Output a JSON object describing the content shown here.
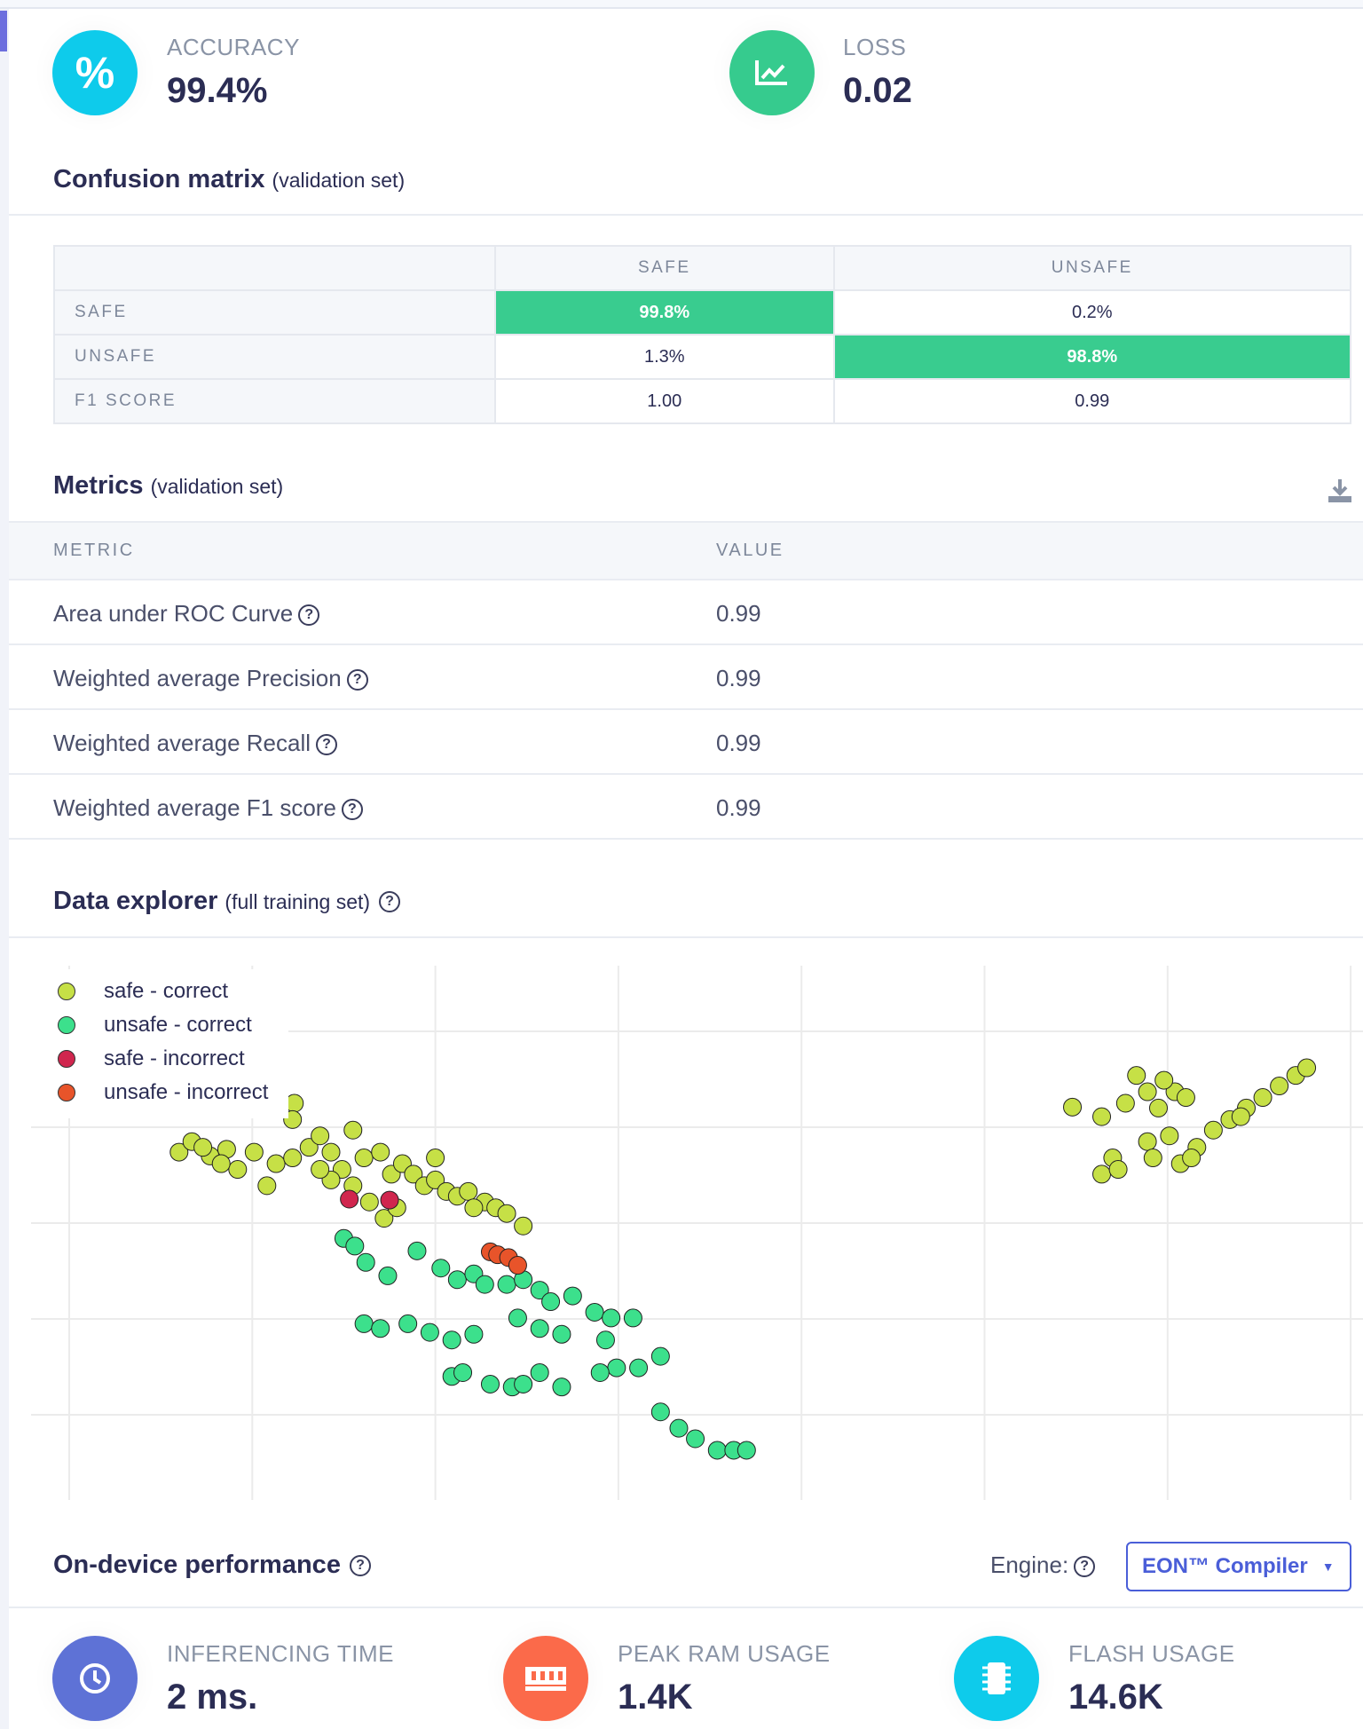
{
  "stats": {
    "accuracy": {
      "label": "ACCURACY",
      "value": "99.4%",
      "icon": "percent-icon",
      "color": "#0ecbeb"
    },
    "loss": {
      "label": "LOSS",
      "value": "0.02",
      "icon": "chart-line-icon",
      "color": "#36cb8e"
    }
  },
  "confusion": {
    "title": "Confusion matrix",
    "subtitle": "(validation set)",
    "columns": [
      "SAFE",
      "UNSAFE"
    ],
    "rows": [
      {
        "label": "SAFE",
        "values": [
          "99.8%",
          "0.2%"
        ]
      },
      {
        "label": "UNSAFE",
        "values": [
          "1.3%",
          "98.8%"
        ]
      },
      {
        "label": "F1 SCORE",
        "values": [
          "1.00",
          "0.99"
        ]
      }
    ]
  },
  "metrics": {
    "title": "Metrics",
    "subtitle": "(validation set)",
    "headers": [
      "METRIC",
      "VALUE"
    ],
    "rows": [
      {
        "name": "Area under ROC Curve",
        "value": "0.99"
      },
      {
        "name": "Weighted average Precision",
        "value": "0.99"
      },
      {
        "name": "Weighted average Recall",
        "value": "0.99"
      },
      {
        "name": "Weighted average F1 score",
        "value": "0.99"
      }
    ]
  },
  "explorer": {
    "title": "Data explorer",
    "subtitle": "(full training set)"
  },
  "chart_data": {
    "type": "scatter",
    "title": "",
    "xlabel": "",
    "ylabel": "",
    "xlim": [
      -0.1,
      7.05
    ],
    "ylim": [
      -0.9,
      4.6
    ],
    "grid": true,
    "legend": "top-left",
    "series": [
      {
        "name": "safe - correct",
        "color": "#c6e046",
        "points": [
          [
            0.6,
            2.74
          ],
          [
            0.67,
            2.85
          ],
          [
            0.77,
            2.7
          ],
          [
            0.86,
            2.77
          ],
          [
            0.92,
            2.56
          ],
          [
            1.01,
            2.74
          ],
          [
            1.08,
            2.39
          ],
          [
            1.13,
            2.62
          ],
          [
            1.22,
            2.68
          ],
          [
            1.31,
            2.79
          ],
          [
            1.37,
            2.91
          ],
          [
            1.43,
            2.74
          ],
          [
            1.49,
            2.56
          ],
          [
            1.55,
            2.97
          ],
          [
            1.61,
            2.68
          ],
          [
            1.7,
            2.74
          ],
          [
            1.76,
            2.51
          ],
          [
            1.82,
            2.62
          ],
          [
            1.88,
            2.51
          ],
          [
            1.94,
            2.39
          ],
          [
            2.0,
            2.45
          ],
          [
            2.06,
            2.33
          ],
          [
            2.12,
            2.28
          ],
          [
            2.18,
            2.33
          ],
          [
            2.27,
            2.22
          ],
          [
            2.33,
            2.16
          ],
          [
            2.39,
            2.1
          ],
          [
            2.48,
            1.97
          ],
          [
            1.23,
            3.25
          ],
          [
            1.22,
            3.08
          ],
          [
            1.43,
            2.45
          ],
          [
            1.64,
            2.22
          ],
          [
            1.72,
            2.05
          ],
          [
            1.79,
            2.16
          ],
          [
            2.21,
            2.16
          ],
          [
            2.0,
            2.68
          ],
          [
            1.37,
            2.56
          ],
          [
            1.55,
            2.39
          ],
          [
            0.83,
            2.62
          ],
          [
            0.73,
            2.79
          ],
          [
            5.48,
            3.21
          ],
          [
            5.64,
            3.11
          ],
          [
            5.7,
            2.68
          ],
          [
            5.83,
            3.54
          ],
          [
            5.89,
            3.37
          ],
          [
            5.95,
            3.2
          ],
          [
            6.04,
            3.37
          ],
          [
            6.1,
            3.31
          ],
          [
            5.89,
            2.85
          ],
          [
            5.77,
            3.25
          ],
          [
            5.64,
            2.51
          ],
          [
            5.73,
            2.56
          ],
          [
            5.92,
            2.68
          ],
          [
            6.01,
            2.91
          ],
          [
            6.07,
            2.62
          ],
          [
            6.16,
            2.79
          ],
          [
            6.25,
            2.97
          ],
          [
            6.34,
            3.08
          ],
          [
            6.43,
            3.2
          ],
          [
            6.52,
            3.31
          ],
          [
            6.61,
            3.43
          ],
          [
            6.7,
            3.54
          ],
          [
            6.76,
            3.62
          ],
          [
            6.13,
            2.68
          ],
          [
            6.4,
            3.11
          ],
          [
            5.98,
            3.49
          ]
        ]
      },
      {
        "name": "unsafe - correct",
        "color": "#3ce08c",
        "points": [
          [
            1.5,
            1.84
          ],
          [
            1.56,
            1.76
          ],
          [
            1.62,
            1.59
          ],
          [
            1.74,
            1.45
          ],
          [
            1.9,
            1.71
          ],
          [
            2.03,
            1.53
          ],
          [
            2.12,
            1.41
          ],
          [
            2.21,
            1.47
          ],
          [
            2.27,
            1.36
          ],
          [
            2.39,
            1.36
          ],
          [
            2.48,
            1.41
          ],
          [
            2.57,
            1.3
          ],
          [
            2.63,
            1.18
          ],
          [
            2.75,
            1.24
          ],
          [
            2.45,
            1.01
          ],
          [
            2.57,
            0.9
          ],
          [
            2.69,
            0.84
          ],
          [
            2.87,
            1.07
          ],
          [
            2.96,
            1.01
          ],
          [
            3.08,
            1.01
          ],
          [
            2.93,
            0.78
          ],
          [
            2.99,
            0.49
          ],
          [
            3.11,
            0.49
          ],
          [
            3.23,
            0.61
          ],
          [
            2.9,
            0.44
          ],
          [
            1.61,
            0.95
          ],
          [
            1.7,
            0.9
          ],
          [
            1.85,
            0.95
          ],
          [
            1.97,
            0.86
          ],
          [
            2.09,
            0.78
          ],
          [
            2.21,
            0.84
          ],
          [
            2.09,
            0.4
          ],
          [
            2.15,
            0.44
          ],
          [
            2.3,
            0.32
          ],
          [
            2.42,
            0.29
          ],
          [
            2.48,
            0.32
          ],
          [
            2.57,
            0.44
          ],
          [
            2.69,
            0.29
          ],
          [
            3.23,
            0.03
          ],
          [
            3.33,
            -0.14
          ],
          [
            3.42,
            -0.25
          ],
          [
            3.54,
            -0.37
          ],
          [
            3.63,
            -0.37
          ],
          [
            3.7,
            -0.37
          ]
        ]
      },
      {
        "name": "safe - incorrect",
        "color": "#d0264e",
        "points": [
          [
            1.53,
            2.25
          ],
          [
            1.75,
            2.24
          ]
        ]
      },
      {
        "name": "unsafe - incorrect",
        "color": "#e8542a",
        "points": [
          [
            2.3,
            1.7
          ],
          [
            2.34,
            1.67
          ],
          [
            2.4,
            1.64
          ],
          [
            2.45,
            1.56
          ]
        ]
      }
    ]
  },
  "performance": {
    "title": "On-device performance",
    "engine_label": "Engine:",
    "engine_value": "EON™ Compiler",
    "items": [
      {
        "label": "INFERENCING TIME",
        "value": "2 ms.",
        "icon": "clock-icon",
        "color": "#5e72d6"
      },
      {
        "label": "PEAK RAM USAGE",
        "value": "1.4K",
        "icon": "memory-icon",
        "color": "#fb6a4a"
      },
      {
        "label": "FLASH USAGE",
        "value": "14.6K",
        "icon": "chip-icon",
        "color": "#0ecbeb"
      }
    ]
  }
}
